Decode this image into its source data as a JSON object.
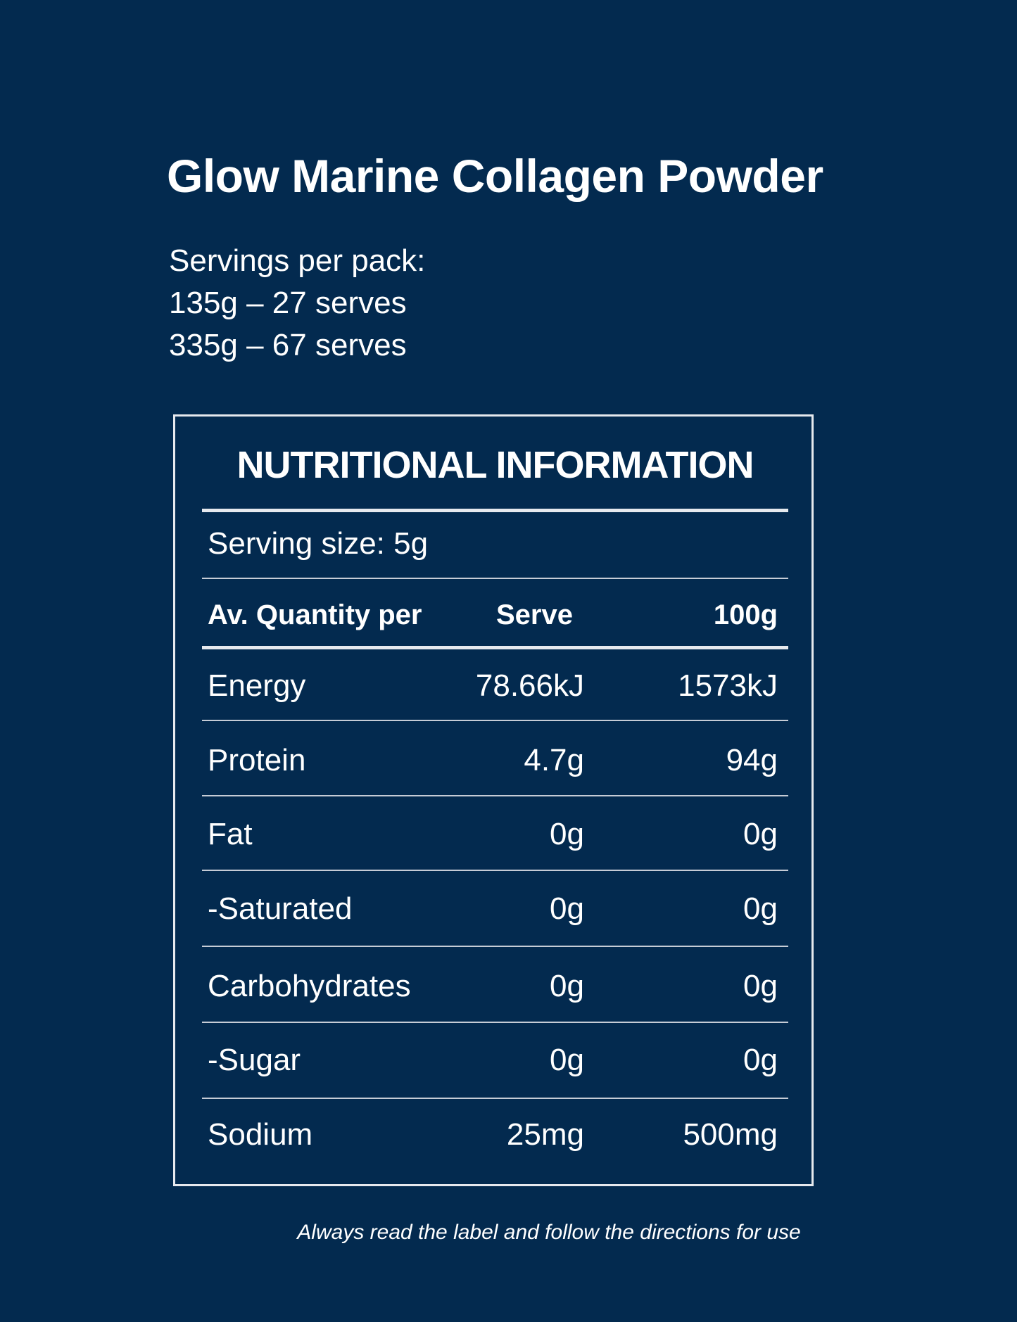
{
  "product": {
    "title": "Glow Marine Collagen Powder"
  },
  "servings": {
    "label": "Servings per pack:",
    "options": [
      "135g – 27 serves",
      "335g – 67 serves"
    ]
  },
  "nutrition": {
    "heading": "NUTRITIONAL INFORMATION",
    "serving_size": "Serving size: 5g",
    "columns": {
      "quantity": "Av. Quantity per",
      "serve": "Serve",
      "per100": "100g"
    },
    "rows": [
      {
        "label": "Energy",
        "serve": "78.66kJ",
        "per100": "1573kJ"
      },
      {
        "label": "Protein",
        "serve": "4.7g",
        "per100": "94g"
      },
      {
        "label": "Fat",
        "serve": "0g",
        "per100": "0g"
      },
      {
        "label": "-Saturated",
        "serve": "0g",
        "per100": "0g"
      },
      {
        "label": "Carbohydrates",
        "serve": "0g",
        "per100": "0g"
      },
      {
        "label": "-Sugar",
        "serve": "0g",
        "per100": "0g"
      },
      {
        "label": "Sodium",
        "serve": "25mg",
        "per100": "500mg"
      }
    ]
  },
  "footer": {
    "disclaimer": "Always read the label and follow the directions for use"
  },
  "colors": {
    "background": "#032a4f",
    "text": "#ffffff"
  }
}
